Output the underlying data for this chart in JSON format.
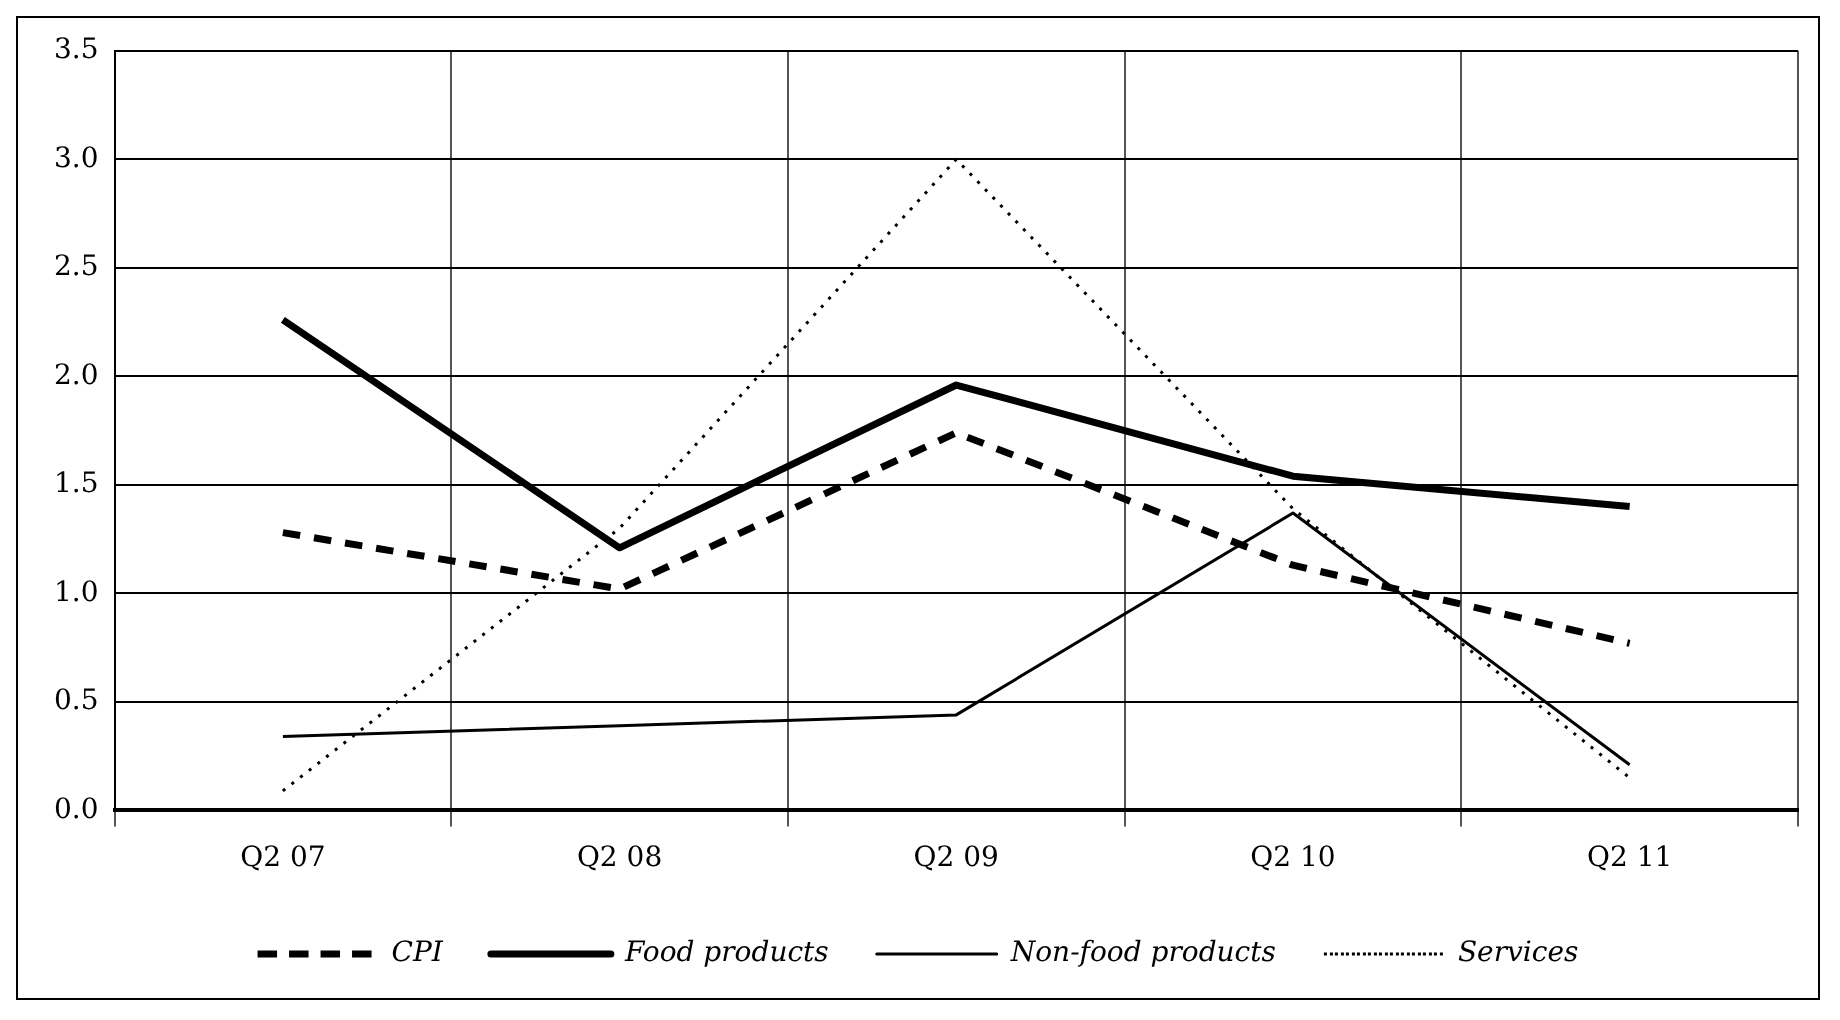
{
  "chart_data": {
    "type": "line",
    "categories": [
      "Q2 07",
      "Q2 08",
      "Q2 09",
      "Q2 10",
      "Q2 11"
    ],
    "series": [
      {
        "name": "CPI",
        "color": "#000000",
        "line_style": "dashed",
        "values": [
          1.28,
          1.02,
          1.74,
          1.13,
          0.77
        ]
      },
      {
        "name": "Food products",
        "color": "#000000",
        "line_style": "solid",
        "values": [
          2.26,
          1.21,
          1.96,
          1.54,
          1.4
        ]
      },
      {
        "name": "Non-food products",
        "color": "#000000",
        "line_style": "solid",
        "values": [
          0.34,
          0.39,
          0.44,
          1.37,
          0.21
        ]
      },
      {
        "name": "Services",
        "color": "#000000",
        "line_style": "dotted",
        "values": [
          0.09,
          1.3,
          3.0,
          1.39,
          0.15
        ]
      }
    ],
    "ylim": [
      0,
      3.5
    ],
    "yticks": [
      {
        "value": 0,
        "label": "0.0"
      },
      {
        "value": 0.5,
        "label": "0.5"
      },
      {
        "value": 1,
        "label": "1.0"
      },
      {
        "value": 1.5,
        "label": "1.5"
      },
      {
        "value": 2,
        "label": "2.0"
      },
      {
        "value": 2.5,
        "label": "2.5"
      },
      {
        "value": 3,
        "label": "3.0"
      },
      {
        "value": 3.5,
        "label": "3.5"
      }
    ],
    "grid": true,
    "legend": "bottom",
    "marker": "none"
  }
}
